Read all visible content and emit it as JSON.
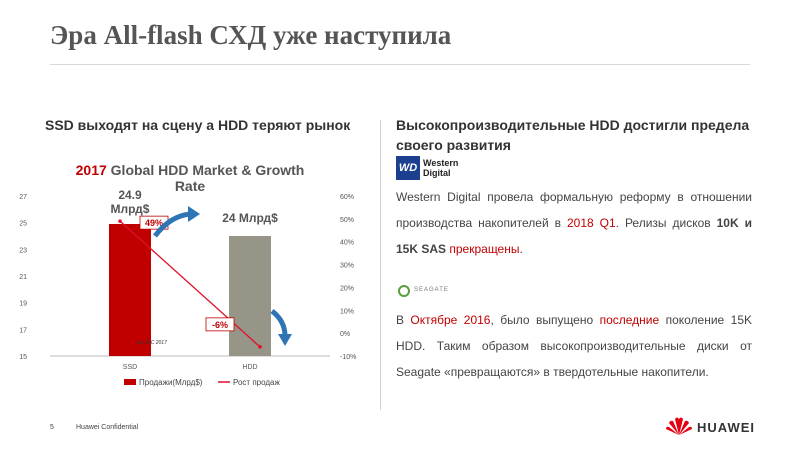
{
  "slide": {
    "title": "Эра All-flash СХД уже наступила",
    "left_heading": "SSD выходят на сцену а HDD теряют рынок",
    "right_heading": "Высокопроизводительные HDD достигли предела своего развития"
  },
  "wd_logo": {
    "box": "WD",
    "line1": "Western",
    "line2": "Digital"
  },
  "seagate_logo": {
    "name": "SEAGATE"
  },
  "para1": {
    "t1": "Western Digital провела формальную реформу в отношении производства накопителей в ",
    "t2": "2018 Q1",
    "t3": ". Релизы дисков ",
    "t4": "10K и 15K SAS",
    "t5": " ",
    "t6": "прекращены",
    "t7": "."
  },
  "para2": {
    "t1": "В ",
    "t2": "Октябре 2016",
    "t3": ", было выпущено ",
    "t4": "последние",
    "t5": " поколение 15K HDD. Таким образом высокопроизводительные диски от Seagate «превращаются» в твердотельные накопители."
  },
  "footer": {
    "page": "5",
    "confidential": "Huawei Confidential",
    "brand": "HUAWEI"
  },
  "colors": {
    "bar_ssd": "#c00000",
    "bar_hdd": "#979587",
    "line": "#e0102a",
    "arrow": "#2e75b6",
    "accent": "#c00000"
  },
  "chart_data": {
    "type": "bar",
    "title_year": "2017",
    "title": "Global HDD Market & Growth Rate",
    "categories": [
      "SSD",
      "HDD"
    ],
    "series": [
      {
        "name": "Продажи(Млрд$)",
        "type": "bar",
        "axis": "left",
        "values": [
          24.9,
          24
        ]
      },
      {
        "name": "Рост продаж",
        "type": "line",
        "axis": "right",
        "values": [
          49,
          -6
        ]
      }
    ],
    "bar_labels": [
      "24.9\nМлрд$",
      "24 Млрд$"
    ],
    "line_labels": [
      "49%",
      "-6%"
    ],
    "y_left": {
      "min": 15,
      "max": 27,
      "ticks": [
        "15",
        "17",
        "19",
        "21",
        "23",
        "25",
        "27"
      ]
    },
    "y_right": {
      "min": -10,
      "max": 60,
      "ticks": [
        "-10%",
        "0%",
        "10%",
        "20%",
        "30%",
        "40%",
        "50%",
        "60%"
      ]
    },
    "source_note": "rce: IDC 2017",
    "legend_position": "bottom"
  }
}
